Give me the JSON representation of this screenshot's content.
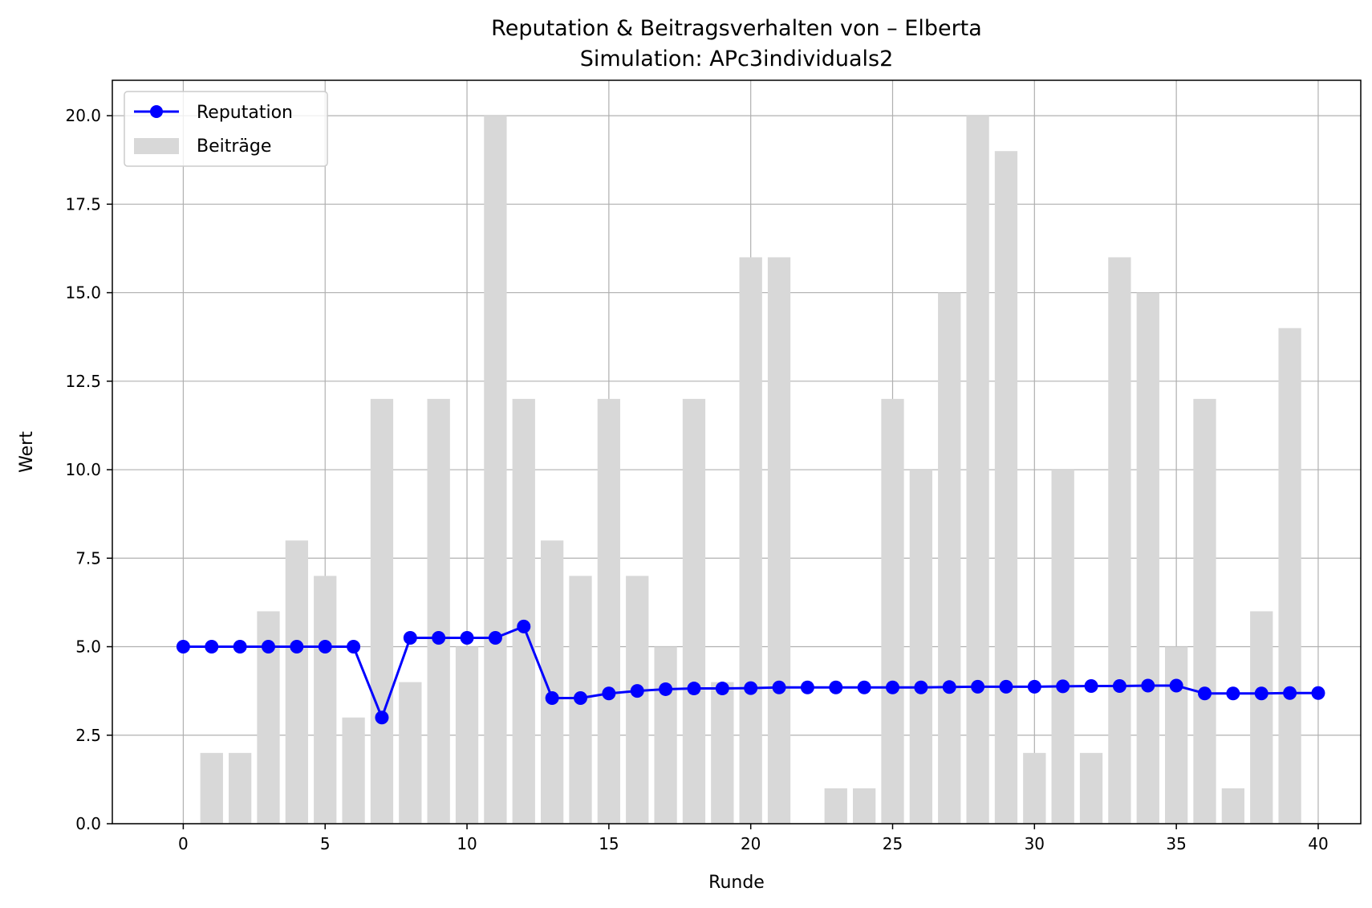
{
  "chart_data": {
    "type": "bar+line",
    "title": "Reputation & Beitragsverhalten von – Elberta",
    "subtitle": "Simulation: APc3individuals2",
    "xlabel": "Runde",
    "ylabel": "Wert",
    "xlim": [
      -2.5,
      41.5
    ],
    "ylim": [
      0,
      21
    ],
    "xticks": [
      0,
      5,
      10,
      15,
      20,
      25,
      30,
      35,
      40
    ],
    "xtick_labels": [
      "0",
      "5",
      "10",
      "15",
      "20",
      "25",
      "30",
      "35",
      "40"
    ],
    "yticks": [
      0,
      2.5,
      5,
      7.5,
      10,
      12.5,
      15,
      17.5,
      20
    ],
    "ytick_labels": [
      "0.0",
      "2.5",
      "5.0",
      "7.5",
      "10.0",
      "12.5",
      "15.0",
      "17.5",
      "20.0"
    ],
    "grid": true,
    "legend_position": "top-left",
    "series": [
      {
        "name": "Reputation",
        "kind": "line",
        "marker": "circle",
        "color": "#0000ff",
        "x": [
          0,
          1,
          2,
          3,
          4,
          5,
          6,
          7,
          8,
          9,
          10,
          11,
          12,
          13,
          14,
          15,
          16,
          17,
          18,
          19,
          20,
          21,
          22,
          23,
          24,
          25,
          26,
          27,
          28,
          29,
          30,
          31,
          32,
          33,
          34,
          35,
          36,
          37,
          38,
          39,
          40
        ],
        "values": [
          5.0,
          5.0,
          5.0,
          5.0,
          5.0,
          5.0,
          5.0,
          3.0,
          5.25,
          5.25,
          5.25,
          5.25,
          5.57,
          3.55,
          3.55,
          3.68,
          3.75,
          3.8,
          3.82,
          3.82,
          3.83,
          3.85,
          3.85,
          3.85,
          3.85,
          3.85,
          3.85,
          3.86,
          3.87,
          3.87,
          3.87,
          3.88,
          3.89,
          3.89,
          3.9,
          3.9,
          3.68,
          3.68,
          3.68,
          3.69,
          3.69
        ]
      },
      {
        "name": "Beiträge",
        "kind": "bar",
        "color": "#d8d8d8",
        "x": [
          1,
          2,
          3,
          4,
          5,
          6,
          7,
          8,
          9,
          10,
          11,
          12,
          13,
          14,
          15,
          16,
          17,
          18,
          19,
          20,
          21,
          22,
          23,
          24,
          25,
          26,
          27,
          28,
          29,
          30,
          31,
          32,
          33,
          34,
          35,
          36,
          37,
          38,
          39
        ],
        "values": [
          2,
          2,
          6,
          8,
          7,
          3,
          12,
          4,
          12,
          5,
          20,
          12,
          8,
          7,
          12,
          7,
          5,
          12,
          4,
          16,
          16,
          0,
          1,
          1,
          12,
          10,
          15,
          20,
          19,
          2,
          10,
          2,
          16,
          15,
          5,
          12,
          1,
          6,
          14
        ]
      }
    ]
  }
}
